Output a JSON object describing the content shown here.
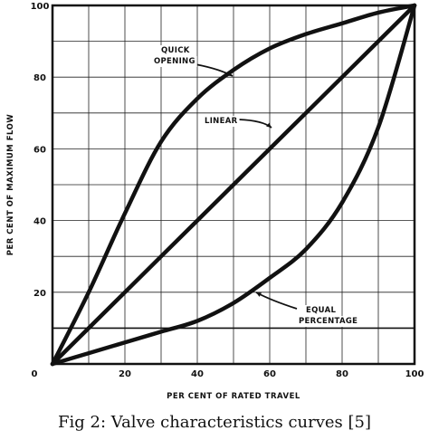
{
  "chart_data": {
    "type": "line",
    "xlabel": "PER CENT OF RATED TRAVEL",
    "ylabel": "PER CENT OF MAXIMUM FLOW",
    "xlim": [
      0,
      100
    ],
    "ylim": [
      0,
      100
    ],
    "x_ticks": [
      "0",
      "20",
      "40",
      "60",
      "80",
      "100"
    ],
    "y_ticks": [
      "20",
      "40",
      "60",
      "80",
      "100"
    ],
    "grid": true,
    "reference_line_y": 10,
    "series": [
      {
        "name": "QUICK OPENING",
        "x": [
          0,
          10,
          20,
          30,
          40,
          50,
          60,
          70,
          80,
          90,
          100
        ],
        "y": [
          0,
          20,
          42,
          62,
          74,
          82,
          88,
          92,
          95,
          98,
          100
        ]
      },
      {
        "name": "LINEAR",
        "x": [
          0,
          20,
          40,
          60,
          80,
          100
        ],
        "y": [
          0,
          20,
          40,
          60,
          80,
          100
        ]
      },
      {
        "name": "EQUAL PERCENTAGE",
        "x": [
          0,
          10,
          20,
          30,
          40,
          50,
          60,
          70,
          80,
          90,
          100
        ],
        "y": [
          0,
          3,
          6,
          9,
          12,
          17,
          24,
          32,
          45,
          66,
          100
        ]
      }
    ],
    "annotations": [
      {
        "lines": [
          "QUICK",
          "OPENING"
        ],
        "series": "QUICK OPENING"
      },
      {
        "lines": [
          "LINEAR"
        ],
        "series": "LINEAR"
      },
      {
        "lines": [
          "EQUAL",
          "PERCENTAGE"
        ],
        "series": "EQUAL PERCENTAGE"
      }
    ]
  },
  "caption": "Fig 2: Valve characteristics curves [5]"
}
